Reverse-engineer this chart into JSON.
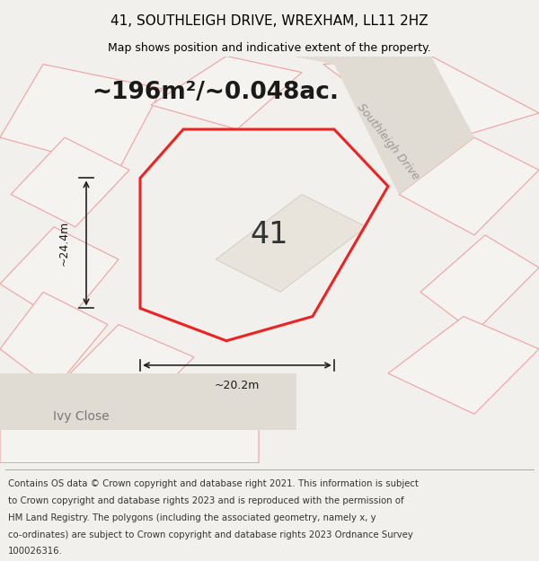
{
  "title": "41, SOUTHLEIGH DRIVE, WREXHAM, LL11 2HZ",
  "subtitle": "Map shows position and indicative extent of the property.",
  "area_text": "~196m²/~0.048ac.",
  "dim_width": "~20.2m",
  "dim_height": "~24.4m",
  "label_number": "41",
  "road1": "Southleigh Drive",
  "road2": "Ivy Close",
  "footer_lines": [
    "Contains OS data © Crown copyright and database right 2021. This information is subject",
    "to Crown copyright and database rights 2023 and is reproduced with the permission of",
    "HM Land Registry. The polygons (including the associated geometry, namely x, y",
    "co-ordinates) are subject to Crown copyright and database rights 2023 Ordnance Survey",
    "100026316."
  ],
  "bg_color": "#f2f0ec",
  "map_bg": "#eceae4",
  "plot_fill": "#f5f3ef",
  "plot_edge": "#f0a0a0",
  "red_edge": "#ee2222",
  "title_fontsize": 11,
  "subtitle_fontsize": 9,
  "footer_fontsize": 7.3
}
